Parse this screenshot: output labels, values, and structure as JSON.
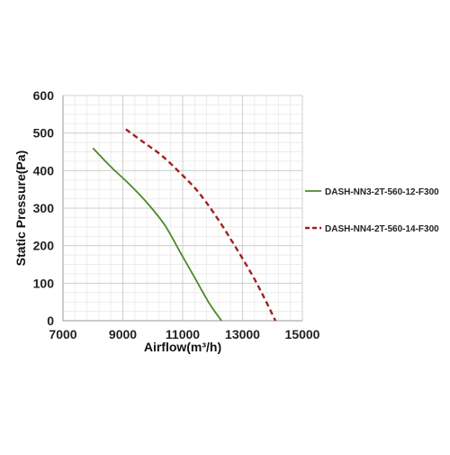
{
  "chart_data": {
    "type": "line",
    "title": "",
    "xlabel": "Airflow(m³/h)",
    "ylabel": "Static Pressure(Pa)",
    "xlim": [
      7000,
      15000
    ],
    "ylim": [
      0,
      600
    ],
    "x_ticks": [
      7000,
      9000,
      11000,
      13000,
      15000
    ],
    "y_ticks": [
      0,
      100,
      200,
      300,
      400,
      500,
      600
    ],
    "x_tick_labels": [
      "7000",
      "9000",
      "11000",
      "13000",
      "15000"
    ],
    "y_tick_labels": [
      "0",
      "100",
      "200",
      "300",
      "400",
      "500",
      "600"
    ],
    "grid": true,
    "legend_position": "right",
    "series": [
      {
        "name": "DASH-NN3-2T-560-12-F300",
        "color": "#4a8a2a",
        "style": "solid",
        "points": [
          [
            8000,
            460
          ],
          [
            8600,
            410
          ],
          [
            9200,
            365
          ],
          [
            9800,
            315
          ],
          [
            10400,
            255
          ],
          [
            10900,
            185
          ],
          [
            11400,
            115
          ],
          [
            11900,
            45
          ],
          [
            12300,
            0
          ]
        ]
      },
      {
        "name": "DASH-NN4-2T-560-14-F300",
        "color": "#a31f1f",
        "style": "dashed",
        "points": [
          [
            9100,
            510
          ],
          [
            9700,
            475
          ],
          [
            10300,
            440
          ],
          [
            10900,
            395
          ],
          [
            11500,
            345
          ],
          [
            12100,
            280
          ],
          [
            12700,
            205
          ],
          [
            13300,
            125
          ],
          [
            13700,
            65
          ],
          [
            14100,
            0
          ]
        ]
      }
    ]
  }
}
